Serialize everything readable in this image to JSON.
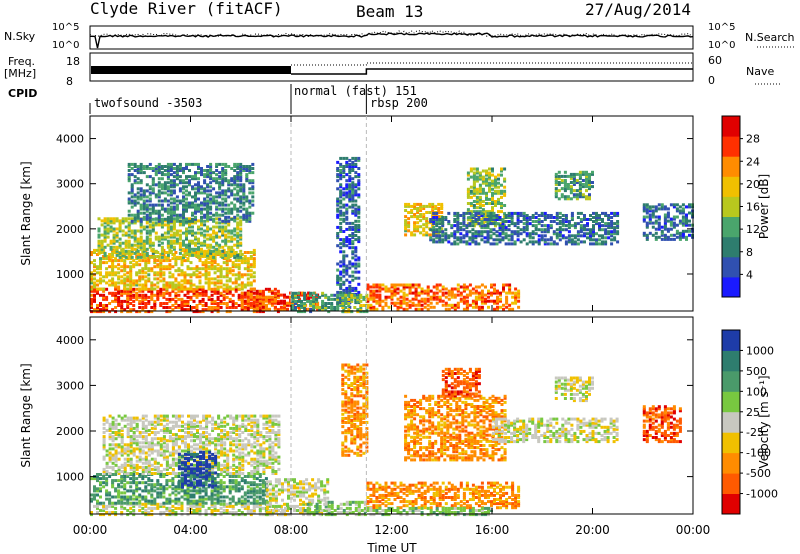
{
  "header": {
    "station": "Clyde River (fitACF)",
    "beam": "Beam 13",
    "date": "27/Aug/2014"
  },
  "left_labels": {
    "nsky": "N.Sky",
    "freq_line1": "Freq.",
    "freq_line2": "[MHz]",
    "cpid": "CPID"
  },
  "right_labels": {
    "nsearch": "N.Search",
    "nave": "Nave"
  },
  "noise_axis": {
    "ticks_left": [
      "10^5",
      "10^0"
    ],
    "ticks_right": [
      "10^5",
      "10^0"
    ]
  },
  "freq_axis": {
    "ticks_left": [
      "18",
      "8"
    ],
    "ticks_right": [
      "60",
      "0"
    ]
  },
  "cpid_segments": [
    {
      "label": "twofsound -3503",
      "start_hour": 0
    },
    {
      "label": "normal (fast) 151",
      "start_hour": 8
    },
    {
      "label": "rbsp 200",
      "start_hour": 11
    }
  ],
  "x_axis": {
    "ticks": [
      "00:00",
      "04:00",
      "08:00",
      "12:00",
      "16:00",
      "20:00",
      "00:00"
    ],
    "title": "Time UT"
  },
  "chart_data": [
    {
      "type": "heatmap",
      "panel": "power",
      "ylabel": "Slant Range [km]",
      "y_ticks": [
        "4000",
        "3000",
        "2000",
        "1000"
      ],
      "ylim": [
        180,
        4500
      ],
      "xlim": [
        0,
        24
      ],
      "colorbar": {
        "label": "Power [dB]",
        "ticks": [
          "28",
          "24",
          "20",
          "16",
          "12",
          "8",
          "4"
        ],
        "range": [
          0,
          30
        ],
        "colors": [
          "#1a1aff",
          "#3050b0",
          "#2e7d6e",
          "#4aa56c",
          "#b8c81e",
          "#f0c000",
          "#ff8c00",
          "#ff3000",
          "#e00000"
        ]
      },
      "regions": [
        {
          "t0": 0.0,
          "t1": 7.5,
          "r0": 200,
          "r1": 700,
          "level": 26
        },
        {
          "t0": 0.0,
          "t1": 6.5,
          "r0": 700,
          "r1": 1600,
          "level": 18
        },
        {
          "t0": 0.3,
          "t1": 6.0,
          "r0": 1400,
          "r1": 2300,
          "level": 14
        },
        {
          "t0": 1.5,
          "t1": 6.5,
          "r0": 2200,
          "r1": 3500,
          "level": 8
        },
        {
          "t0": 6.0,
          "t1": 9.0,
          "r0": 250,
          "r1": 650,
          "level": 26
        },
        {
          "t0": 8.0,
          "t1": 10.3,
          "r0": 200,
          "r1": 650,
          "level": 10
        },
        {
          "t0": 9.8,
          "t1": 10.7,
          "r0": 400,
          "r1": 3600,
          "level": 5
        },
        {
          "t0": 10.0,
          "t1": 11.0,
          "r0": 200,
          "r1": 600,
          "level": 14
        },
        {
          "t0": 11.0,
          "t1": 17.0,
          "r0": 250,
          "r1": 800,
          "level": 24
        },
        {
          "t0": 12.5,
          "t1": 14.0,
          "r0": 1900,
          "r1": 2600,
          "level": 18
        },
        {
          "t0": 15.0,
          "t1": 16.5,
          "r0": 2100,
          "r1": 3400,
          "level": 14
        },
        {
          "t0": 13.5,
          "t1": 21.0,
          "r0": 1700,
          "r1": 2400,
          "level": 6
        },
        {
          "t0": 18.5,
          "t1": 20.0,
          "r0": 2700,
          "r1": 3300,
          "level": 10
        },
        {
          "t0": 22.0,
          "t1": 24.0,
          "r0": 1800,
          "r1": 2600,
          "level": 6
        }
      ]
    },
    {
      "type": "heatmap",
      "panel": "velocity",
      "ylabel": "Slant Range [km]",
      "y_ticks": [
        "4000",
        "3000",
        "2000",
        "1000"
      ],
      "ylim": [
        180,
        4500
      ],
      "xlim": [
        0,
        24
      ],
      "colorbar": {
        "label": "Velocity [m s⁻¹]",
        "ticks": [
          "1000",
          "500",
          "100",
          "25",
          "-25",
          "-100",
          "-500",
          "-1000"
        ],
        "colors": [
          "#1e3ca8",
          "#2e7d6e",
          "#4a9a6a",
          "#78c840",
          "#c8c8c0",
          "#f0c000",
          "#ff8c00",
          "#ff5a00",
          "#e00000"
        ]
      },
      "regions": [
        {
          "t0": 0.0,
          "t1": 8.0,
          "r0": 200,
          "r1": 450,
          "level": 4
        },
        {
          "t0": 0.0,
          "t1": 7.0,
          "r0": 450,
          "r1": 1100,
          "level": 2
        },
        {
          "t0": 0.5,
          "t1": 7.5,
          "r0": 1100,
          "r1": 2400,
          "level": 4
        },
        {
          "t0": 3.5,
          "t1": 5.0,
          "r0": 800,
          "r1": 1600,
          "level": 0
        },
        {
          "t0": 7.0,
          "t1": 9.5,
          "r0": 200,
          "r1": 1000,
          "level": 4
        },
        {
          "t0": 8.5,
          "t1": 11.0,
          "r0": 200,
          "r1": 500,
          "level": 3
        },
        {
          "t0": 10.0,
          "t1": 11.0,
          "r0": 1500,
          "r1": 3500,
          "level": 6
        },
        {
          "t0": 11.0,
          "t1": 17.0,
          "r0": 350,
          "r1": 900,
          "level": 6
        },
        {
          "t0": 11.0,
          "t1": 16.0,
          "r0": 200,
          "r1": 350,
          "level": 3
        },
        {
          "t0": 12.5,
          "t1": 16.5,
          "r0": 1400,
          "r1": 2800,
          "level": 6
        },
        {
          "t0": 14.0,
          "t1": 15.5,
          "r0": 2800,
          "r1": 3400,
          "level": 7
        },
        {
          "t0": 16.0,
          "t1": 21.0,
          "r0": 1800,
          "r1": 2300,
          "level": 4
        },
        {
          "t0": 18.5,
          "t1": 20.0,
          "r0": 2700,
          "r1": 3200,
          "level": 4
        },
        {
          "t0": 22.0,
          "t1": 23.5,
          "r0": 1800,
          "r1": 2600,
          "level": 7
        }
      ]
    }
  ]
}
